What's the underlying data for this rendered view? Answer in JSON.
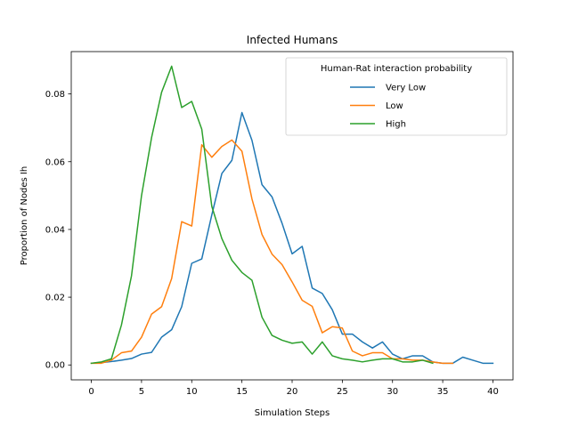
{
  "chart_data": {
    "type": "line",
    "title": "Infected Humans",
    "xlabel": "Simulation Steps",
    "ylabel": "Proportion of Nodes Ih",
    "xlim": [
      -2,
      42
    ],
    "ylim": [
      -0.0044,
      0.0925
    ],
    "xticks": [
      0,
      5,
      10,
      15,
      20,
      25,
      30,
      35,
      40
    ],
    "yticks": [
      0.0,
      0.02,
      0.04,
      0.06,
      0.08
    ],
    "ytick_labels": [
      "0.00",
      "0.02",
      "0.04",
      "0.06",
      "0.08"
    ],
    "grid": false,
    "legend": {
      "title": "Human-Rat interaction probability",
      "placement": "top-right"
    },
    "series": [
      {
        "name": "Very Low",
        "color": "#1f77b4",
        "x": [
          0,
          1,
          2,
          3,
          4,
          5,
          6,
          7,
          8,
          9,
          10,
          11,
          12,
          13,
          14,
          15,
          16,
          17,
          18,
          19,
          20,
          21,
          22,
          23,
          24,
          25,
          26,
          27,
          28,
          29,
          30,
          31,
          32,
          33,
          34,
          35,
          36,
          37,
          38,
          39,
          40
        ],
        "values": [
          0.0005,
          0.0007,
          0.001,
          0.0014,
          0.0019,
          0.0032,
          0.0037,
          0.0082,
          0.0104,
          0.0172,
          0.03,
          0.0313,
          0.0443,
          0.0565,
          0.0604,
          0.0745,
          0.0663,
          0.0532,
          0.0496,
          0.0418,
          0.0328,
          0.035,
          0.0227,
          0.0211,
          0.0163,
          0.0091,
          0.0091,
          0.0068,
          0.005,
          0.0068,
          0.0032,
          0.0018,
          0.0027,
          0.0027,
          0.0009,
          0.0005,
          0.0005,
          0.0023,
          0.0014,
          0.0005,
          0.0005
        ]
      },
      {
        "name": "Low",
        "color": "#ff7f0e",
        "x": [
          0,
          1,
          2,
          3,
          4,
          5,
          6,
          7,
          8,
          9,
          10,
          11,
          12,
          13,
          14,
          15,
          16,
          17,
          18,
          19,
          20,
          21,
          22,
          23,
          24,
          25,
          26,
          27,
          28,
          29,
          30,
          31,
          32,
          33,
          34,
          35,
          36
        ],
        "values": [
          0.0005,
          0.0005,
          0.0014,
          0.0036,
          0.0041,
          0.0082,
          0.015,
          0.0172,
          0.0255,
          0.0423,
          0.041,
          0.065,
          0.0613,
          0.0645,
          0.0664,
          0.0631,
          0.049,
          0.0385,
          0.0327,
          0.0296,
          0.0245,
          0.0191,
          0.0173,
          0.0095,
          0.0113,
          0.0109,
          0.0041,
          0.0027,
          0.0036,
          0.0036,
          0.0018,
          0.0018,
          0.0014,
          0.0014,
          0.0009,
          0.0005,
          0.0005
        ]
      },
      {
        "name": "High",
        "color": "#2ca02c",
        "x": [
          0,
          1,
          2,
          3,
          4,
          5,
          6,
          7,
          8,
          9,
          10,
          11,
          12,
          13,
          14,
          15,
          16,
          17,
          18,
          19,
          20,
          21,
          22,
          23,
          24,
          25,
          26,
          27,
          28,
          29,
          30,
          31,
          32,
          33,
          34
        ],
        "values": [
          0.0005,
          0.0009,
          0.0018,
          0.0118,
          0.0263,
          0.05,
          0.0671,
          0.0805,
          0.0882,
          0.076,
          0.0778,
          0.0696,
          0.0468,
          0.0373,
          0.0309,
          0.0273,
          0.025,
          0.0141,
          0.0087,
          0.0073,
          0.0064,
          0.0068,
          0.0032,
          0.0068,
          0.0027,
          0.0018,
          0.0014,
          0.0009,
          0.0014,
          0.0018,
          0.0018,
          0.0009,
          0.0009,
          0.0014,
          0.0005
        ]
      }
    ]
  }
}
